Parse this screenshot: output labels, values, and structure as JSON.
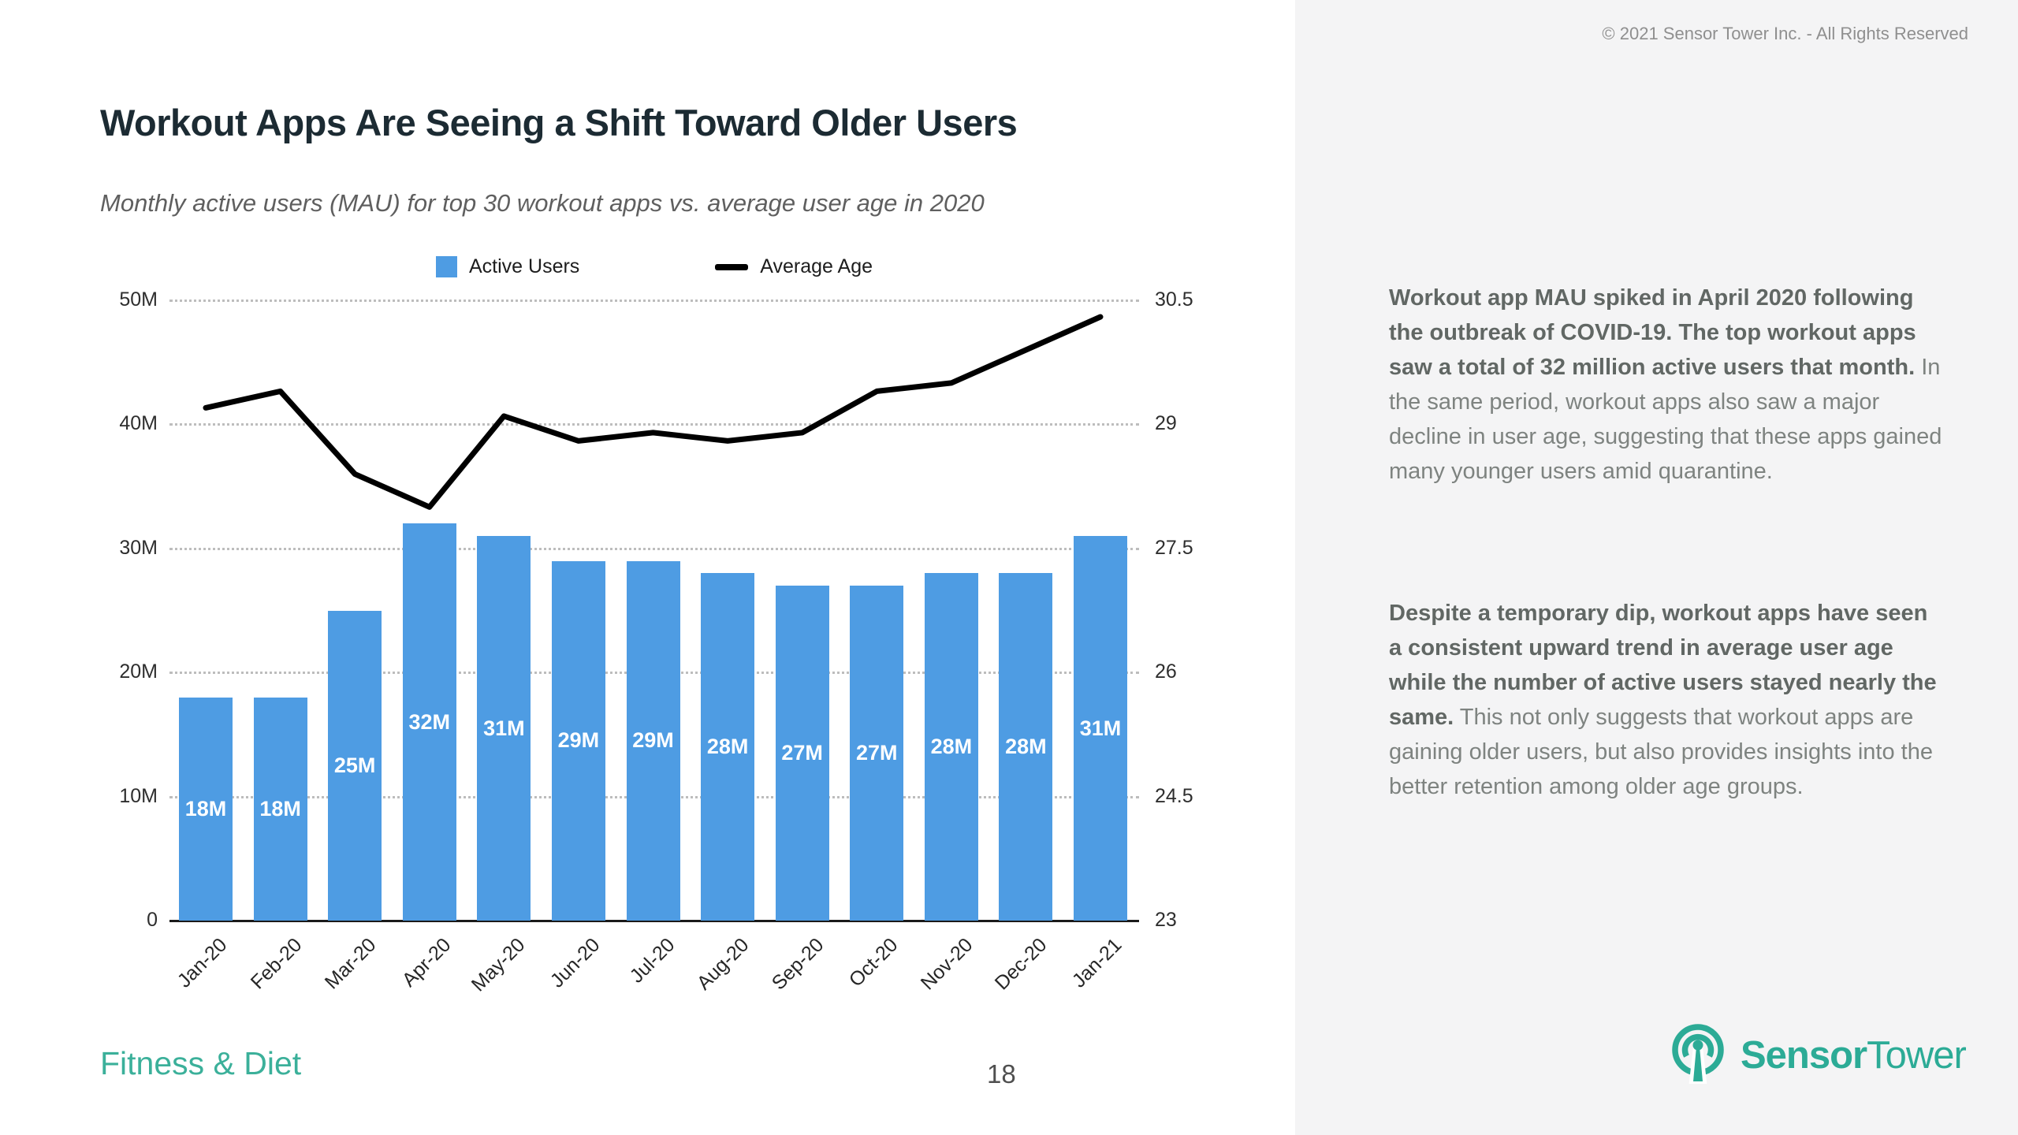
{
  "header": {
    "copyright": "© 2021 Sensor Tower Inc. - All Rights Reserved",
    "title": "Workout Apps Are Seeing a Shift Toward Older Users",
    "subtitle": "Monthly active users (MAU) for top 30 workout apps vs. average user age in 2020"
  },
  "chart_data": {
    "type": "bar+line",
    "categories": [
      "Jan-20",
      "Feb-20",
      "Mar-20",
      "Apr-20",
      "May-20",
      "Jun-20",
      "Jul-20",
      "Aug-20",
      "Sep-20",
      "Oct-20",
      "Nov-20",
      "Dec-20",
      "Jan-21"
    ],
    "series": [
      {
        "name": "Active Users",
        "chart": "bar",
        "axis": "left",
        "color": "#4e9ce3",
        "unit": "M",
        "values": [
          18,
          18,
          25,
          32,
          31,
          29,
          29,
          28,
          27,
          27,
          28,
          28,
          31
        ],
        "bar_labels": [
          "18M",
          "18M",
          "25M",
          "32M",
          "31M",
          "29M",
          "29M",
          "28M",
          "27M",
          "27M",
          "28M",
          "28M",
          "31M"
        ]
      },
      {
        "name": "Average Age",
        "chart": "line",
        "axis": "right",
        "color": "#000000",
        "values": [
          29.2,
          29.4,
          28.4,
          28.0,
          29.1,
          28.8,
          28.9,
          28.8,
          28.9,
          29.4,
          29.5,
          29.9,
          30.3
        ]
      }
    ],
    "left_axis": {
      "min": 0,
      "max": 50,
      "unit": "M",
      "tick_labels_top_down": [
        "50M",
        "40M",
        "30M",
        "20M",
        "10M",
        "0"
      ]
    },
    "right_axis": {
      "min": 23,
      "max": 30.5,
      "tick_labels_top_down": [
        "30.5",
        "29",
        "27.5",
        "26",
        "24.5",
        "23"
      ]
    },
    "legend_position": "top-center",
    "grid": "horizontal-dotted"
  },
  "panel": {
    "paragraphs": [
      {
        "bold": "Workout app MAU spiked in April 2020 following the outbreak of COVID-19. The top workout apps saw a total of 32 million active users that month.",
        "rest": " In the same period, workout apps also saw a major decline in user age, suggesting that these apps gained many younger users amid quarantine."
      },
      {
        "bold": "Despite a temporary dip, workout apps have seen a consistent upward trend in average user age while the number of active users stayed nearly the same.",
        "rest": " This not only suggests that workout apps are gaining older users, but also provides insights into the better retention among older age groups."
      }
    ]
  },
  "footer": {
    "category": "Fitness & Diet",
    "page_number": "18",
    "brand": {
      "bold": "Sensor",
      "regular": "Tower"
    }
  }
}
